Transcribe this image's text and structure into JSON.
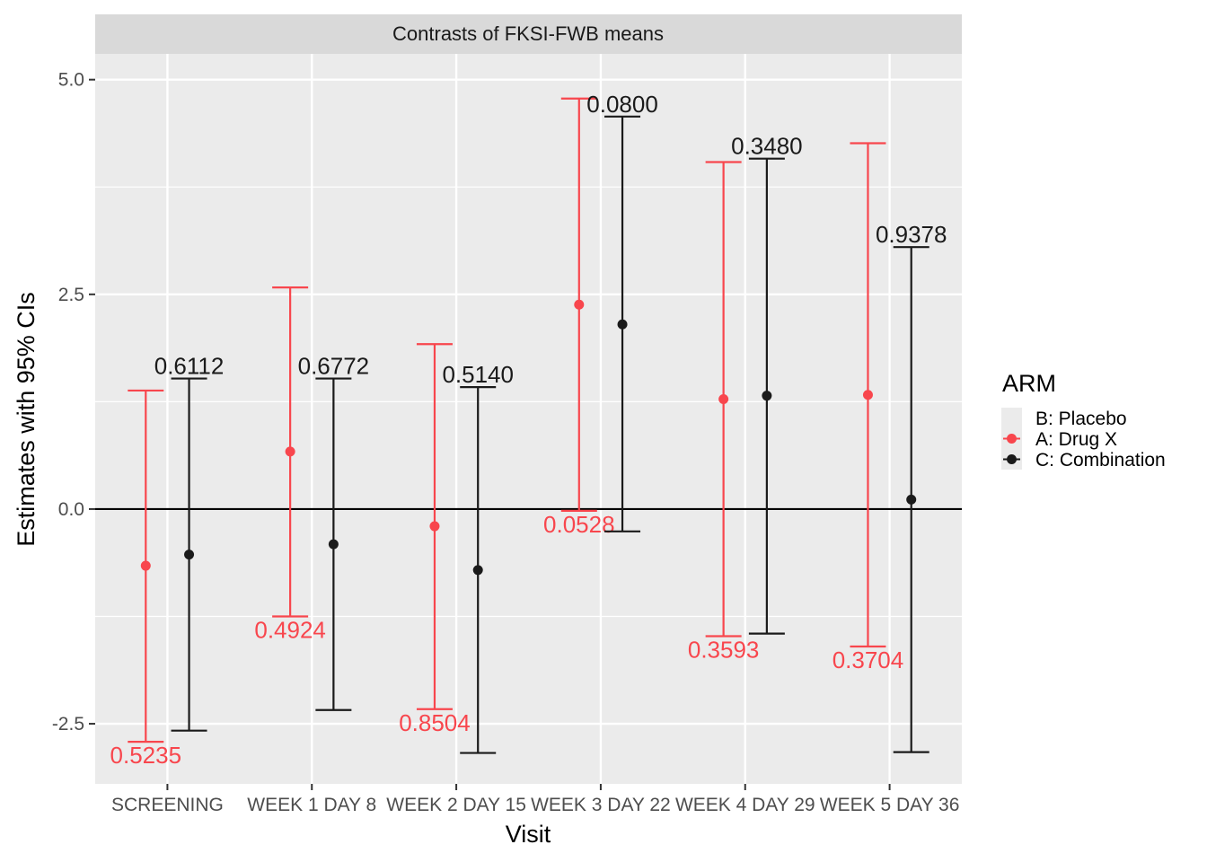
{
  "chart_data": {
    "type": "errorbar",
    "strip_title": "Contrasts of FKSI-FWB means",
    "xlabel": "Visit",
    "ylabel": "Estimates with 95% CIs",
    "categories": [
      "SCREENING",
      "WEEK 1 DAY 8",
      "WEEK 2 DAY 15",
      "WEEK 3 DAY 22",
      "WEEK 4 DAY 29",
      "WEEK 5 DAY 36"
    ],
    "ylim": [
      -3.2,
      5.3
    ],
    "yticks": [
      -2.5,
      0.0,
      2.5,
      5.0
    ],
    "ytick_labels": [
      "-2.5",
      "0.0",
      "2.5",
      "5.0"
    ],
    "reference_line": 0,
    "legend": {
      "title": "ARM",
      "placement": "right",
      "entries": [
        {
          "label": "B: Placebo",
          "color": "#ebebeb",
          "marker": false
        },
        {
          "label": "A: Drug X",
          "color": "#f8464d",
          "marker": true
        },
        {
          "label": "C: Combination",
          "color": "#1a1a1a",
          "marker": true
        }
      ]
    },
    "series": [
      {
        "name": "A: Drug X",
        "color": "#f8464d",
        "estimate": [
          -0.66,
          0.67,
          -0.2,
          2.38,
          1.28,
          1.33
        ],
        "lower": [
          -2.71,
          -1.25,
          -2.33,
          -0.02,
          -1.48,
          -1.6
        ],
        "upper": [
          1.38,
          2.58,
          1.92,
          4.78,
          4.04,
          4.26
        ],
        "pvalues": [
          "0.5235",
          "0.4924",
          "0.8504",
          "0.0528",
          "0.3593",
          "0.3704"
        ]
      },
      {
        "name": "C: Combination",
        "color": "#1a1a1a",
        "estimate": [
          -0.53,
          -0.41,
          -0.71,
          2.15,
          1.32,
          0.11
        ],
        "lower": [
          -2.58,
          -2.34,
          -2.84,
          -0.26,
          -1.45,
          -2.83
        ],
        "upper": [
          1.52,
          1.52,
          1.42,
          4.57,
          4.08,
          3.05
        ],
        "pvalues": [
          "0.6112",
          "0.6772",
          "0.5140",
          "0.0800",
          "0.3480",
          "0.9378"
        ]
      }
    ]
  }
}
